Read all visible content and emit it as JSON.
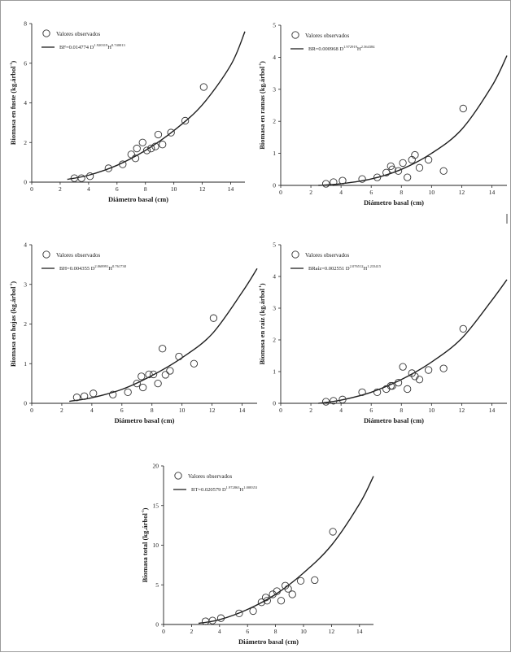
{
  "chart_data": [
    {
      "type": "scatter",
      "xlabel": "Diámetro basal (cm)",
      "ylabel": "Biomasa en fuste (kg.árbol-1)",
      "ylabel_parts": {
        "main": "Biomasa en fuste (kg.árbol",
        "sup": "-1",
        "close": ")"
      },
      "xlim": [
        0,
        15
      ],
      "ylim": [
        0,
        8
      ],
      "xticks": [
        0,
        2,
        4,
        6,
        8,
        10,
        12,
        14
      ],
      "yticks": [
        0,
        2,
        4,
        6,
        8
      ],
      "legend_position": "top-left",
      "legend": {
        "points_label": "Valores observados",
        "equation": {
          "prefix": "BF=0.014774 D",
          "exp1": "1.920319",
          "mid": "H",
          "exp2": "0.740013"
        }
      },
      "points": {
        "x": [
          3.0,
          3.5,
          4.1,
          5.4,
          6.4,
          7.0,
          7.3,
          7.4,
          7.8,
          8.1,
          8.4,
          8.7,
          8.9,
          9.2,
          9.8,
          10.8,
          12.1
        ],
        "y": [
          0.2,
          0.2,
          0.3,
          0.7,
          0.9,
          1.4,
          1.2,
          1.7,
          2.0,
          1.6,
          1.7,
          1.8,
          2.4,
          1.9,
          2.5,
          3.1,
          4.8
        ]
      },
      "curve": {
        "x": [
          2.5,
          4,
          6,
          8,
          10,
          12,
          14,
          15
        ],
        "y": [
          0.14,
          0.35,
          0.85,
          1.6,
          2.6,
          3.9,
          5.9,
          7.6
        ]
      }
    },
    {
      "type": "scatter",
      "xlabel": "Diámetro basal (cm)",
      "ylabel": "Biomasa en ramas (kg.árbol-1)",
      "ylabel_parts": {
        "main": "Biomasa en ramas (kg.árbol",
        "sup": "-1",
        "close": ")"
      },
      "xlim": [
        0,
        15
      ],
      "ylim": [
        0,
        5
      ],
      "xticks": [
        0,
        2,
        4,
        6,
        8,
        10,
        12,
        14
      ],
      "yticks": [
        0,
        1,
        2,
        3,
        4,
        5
      ],
      "legend_position": "top-left",
      "legend": {
        "points_label": "Valores observados",
        "equation": {
          "prefix": "BR=0.000968 D",
          "exp1": "1.972919",
          "mid": "H",
          "exp2": "2.364384"
        }
      },
      "points": {
        "x": [
          3.0,
          3.5,
          4.1,
          5.4,
          6.4,
          7.0,
          7.3,
          7.4,
          7.8,
          8.1,
          8.4,
          8.7,
          8.9,
          9.2,
          9.8,
          10.8,
          12.1
        ],
        "y": [
          0.05,
          0.1,
          0.15,
          0.2,
          0.25,
          0.4,
          0.6,
          0.5,
          0.45,
          0.7,
          0.25,
          0.8,
          0.95,
          0.55,
          0.8,
          0.45,
          2.4
        ]
      },
      "curve": {
        "x": [
          2.5,
          4,
          6,
          8,
          10,
          12,
          14,
          15
        ],
        "y": [
          0.0,
          0.05,
          0.2,
          0.5,
          1.0,
          1.75,
          3.1,
          4.05
        ]
      }
    },
    {
      "type": "scatter",
      "xlabel": "Diámetro basal (cm)",
      "ylabel": "Biomasa en hojas (kg.árbol-1)",
      "ylabel_parts": {
        "main": "Biomasa en hojas (kg.árbol",
        "sup": "-1",
        "close": ")"
      },
      "xlim": [
        0,
        15
      ],
      "ylim": [
        0,
        4
      ],
      "xticks": [
        0,
        2,
        4,
        6,
        8,
        10,
        12,
        14
      ],
      "yticks": [
        0,
        1,
        2,
        3,
        4
      ],
      "legend_position": "top-left",
      "legend": {
        "points_label": "Valores observados",
        "equation": {
          "prefix": "BH=0.004355 D",
          "exp1": "2.068991",
          "mid": "H",
          "exp2": "0.761738"
        }
      },
      "points": {
        "x": [
          3.0,
          3.5,
          4.1,
          5.4,
          6.4,
          7.0,
          7.3,
          7.4,
          7.8,
          8.1,
          8.4,
          8.7,
          8.9,
          9.2,
          9.8,
          10.8,
          12.1
        ],
        "y": [
          0.15,
          0.18,
          0.25,
          0.22,
          0.28,
          0.5,
          0.68,
          0.4,
          0.73,
          0.73,
          0.5,
          1.38,
          0.72,
          0.82,
          1.18,
          1.0,
          2.15
        ]
      },
      "curve": {
        "x": [
          2.5,
          4,
          6,
          8,
          10,
          12,
          14,
          15
        ],
        "y": [
          0.05,
          0.14,
          0.35,
          0.7,
          1.15,
          1.75,
          2.8,
          3.4
        ]
      }
    },
    {
      "type": "scatter",
      "xlabel": "Diámetro basal (cm)",
      "ylabel": "Biomasa en raíz (kg.árbol-1)",
      "ylabel_parts": {
        "main": "Biomasa en raíz (kg.árbol",
        "sup": "-1",
        "close": ")"
      },
      "xlim": [
        0,
        15
      ],
      "ylim": [
        0,
        5
      ],
      "xticks": [
        0,
        2,
        4,
        6,
        8,
        10,
        12,
        14
      ],
      "yticks": [
        0,
        1,
        2,
        3,
        4,
        5
      ],
      "legend_position": "top-left",
      "legend": {
        "points_label": "Valores observados",
        "equation": {
          "prefix": "BRaíz=0.002551 D",
          "exp1": "2.076512",
          "mid": "H",
          "exp2": "1.233415"
        }
      },
      "points": {
        "x": [
          3.0,
          3.5,
          4.1,
          5.4,
          6.4,
          7.0,
          7.3,
          7.4,
          7.8,
          8.1,
          8.4,
          8.7,
          8.9,
          9.2,
          9.8,
          10.8,
          12.1
        ],
        "y": [
          0.05,
          0.08,
          0.12,
          0.35,
          0.35,
          0.45,
          0.55,
          0.55,
          0.65,
          1.15,
          0.45,
          0.95,
          0.85,
          0.75,
          1.05,
          1.1,
          2.35
        ]
      },
      "curve": {
        "x": [
          2.5,
          4,
          6,
          8,
          10,
          12,
          14,
          15
        ],
        "y": [
          0.0,
          0.1,
          0.35,
          0.75,
          1.3,
          2.05,
          3.25,
          3.9
        ]
      }
    },
    {
      "type": "scatter",
      "xlabel": "Diámetro basal (cm)",
      "ylabel": "Biomasa total (kg.árbol-1)",
      "ylabel_parts": {
        "main": "Biomasa total (kg.árbol",
        "sup": "-1",
        "close": ")"
      },
      "xlim": [
        0,
        15
      ],
      "ylim": [
        0,
        20
      ],
      "xticks": [
        0,
        2,
        4,
        6,
        8,
        10,
        12,
        14
      ],
      "yticks": [
        0,
        5,
        10,
        15,
        20
      ],
      "legend_position": "top-left",
      "legend": {
        "points_label": "Valores observados",
        "equation": {
          "prefix": "BT=0.020579 D",
          "exp1": "1.972863",
          "mid": "H",
          "exp2": "1.008353"
        }
      },
      "points": {
        "x": [
          3.0,
          3.5,
          4.1,
          5.4,
          6.4,
          7.0,
          7.3,
          7.4,
          7.8,
          8.1,
          8.4,
          8.7,
          8.9,
          9.2,
          9.8,
          10.8,
          12.1
        ],
        "y": [
          0.4,
          0.5,
          0.8,
          1.4,
          1.7,
          2.8,
          3.4,
          3.0,
          3.8,
          4.2,
          3.0,
          4.9,
          4.5,
          3.8,
          5.5,
          5.6,
          11.7
        ]
      },
      "curve": {
        "x": [
          2.5,
          4,
          6,
          8,
          10,
          12,
          14,
          15
        ],
        "y": [
          0.15,
          0.6,
          1.9,
          3.8,
          6.5,
          10.0,
          15.2,
          18.7
        ]
      }
    }
  ]
}
